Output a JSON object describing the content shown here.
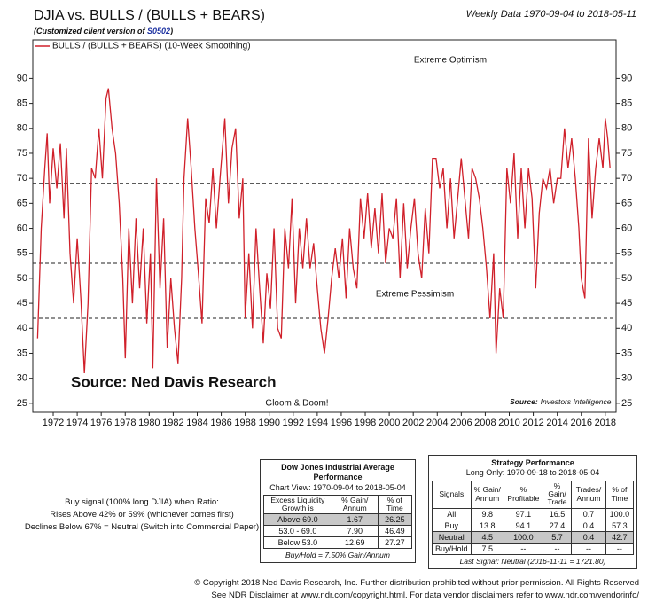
{
  "header": {
    "title": "DJIA vs. BULLS / (BULLS + BEARS)",
    "subtitle": [
      "(Customized client version of ",
      "S0502",
      ")"
    ],
    "date_range": "Weekly Data 1970-09-04 to 2018-05-11"
  },
  "chart_data": {
    "type": "line",
    "x": [
      1970.7,
      1971.0,
      1971.3,
      1971.5,
      1971.7,
      1972.0,
      1972.3,
      1972.6,
      1972.9,
      1973.1,
      1973.4,
      1973.7,
      1974.0,
      1974.3,
      1974.6,
      1974.9,
      1975.2,
      1975.5,
      1975.8,
      1976.1,
      1976.4,
      1976.6,
      1976.9,
      1977.2,
      1977.5,
      1977.8,
      1978.0,
      1978.3,
      1978.6,
      1978.9,
      1979.2,
      1979.5,
      1979.8,
      1980.1,
      1980.3,
      1980.6,
      1980.9,
      1981.2,
      1981.5,
      1981.8,
      1982.1,
      1982.4,
      1982.7,
      1982.9,
      1983.2,
      1983.5,
      1983.8,
      1984.1,
      1984.4,
      1984.7,
      1985.0,
      1985.3,
      1985.6,
      1985.9,
      1986.3,
      1986.6,
      1986.9,
      1987.2,
      1987.5,
      1987.8,
      1988.0,
      1988.3,
      1988.6,
      1988.9,
      1989.2,
      1989.5,
      1989.8,
      1990.1,
      1990.4,
      1990.7,
      1991.0,
      1991.3,
      1991.6,
      1991.9,
      1992.2,
      1992.5,
      1992.8,
      1993.1,
      1993.4,
      1993.7,
      1994.0,
      1994.3,
      1994.6,
      1994.9,
      1995.2,
      1995.5,
      1995.8,
      1996.1,
      1996.4,
      1996.7,
      1997.0,
      1997.3,
      1997.6,
      1997.9,
      1998.2,
      1998.5,
      1998.8,
      1999.1,
      1999.4,
      1999.7,
      2000.0,
      2000.3,
      2000.6,
      2000.9,
      2001.2,
      2001.5,
      2001.8,
      2002.1,
      2002.4,
      2002.7,
      2003.0,
      2003.3,
      2003.6,
      2003.9,
      2004.2,
      2004.5,
      2004.8,
      2005.1,
      2005.4,
      2005.7,
      2006.0,
      2006.3,
      2006.6,
      2006.9,
      2007.2,
      2007.5,
      2007.8,
      2008.1,
      2008.4,
      2008.7,
      2008.9,
      2009.2,
      2009.5,
      2009.8,
      2010.1,
      2010.4,
      2010.7,
      2011.0,
      2011.3,
      2011.6,
      2011.9,
      2012.2,
      2012.5,
      2012.8,
      2013.1,
      2013.4,
      2013.7,
      2014.0,
      2014.3,
      2014.6,
      2014.9,
      2015.2,
      2015.5,
      2015.8,
      2016.0,
      2016.3,
      2016.6,
      2016.9,
      2017.2,
      2017.5,
      2017.8,
      2018.0,
      2018.2,
      2018.4
    ],
    "series": [
      {
        "name": "BULLS / (BULLS + BEARS) (10-Week Smoothing)",
        "color": "#d0202a",
        "values": [
          38,
          60,
          72,
          79,
          65,
          76,
          68,
          77,
          62,
          76,
          55,
          45,
          58,
          46,
          31,
          45,
          72,
          70,
          80,
          70,
          86,
          88,
          80,
          75,
          65,
          50,
          34,
          60,
          45,
          62,
          48,
          60,
          41,
          55,
          32,
          70,
          48,
          62,
          36,
          50,
          40,
          33,
          50,
          70,
          82,
          72,
          60,
          51,
          41,
          66,
          61,
          72,
          60,
          70,
          82,
          65,
          76,
          80,
          62,
          70,
          42,
          55,
          40,
          60,
          48,
          37,
          51,
          44,
          60,
          40,
          38,
          60,
          52,
          66,
          45,
          60,
          52,
          62,
          52,
          57,
          48,
          40,
          35,
          42,
          50,
          56,
          50,
          58,
          46,
          60,
          52,
          48,
          66,
          58,
          67,
          56,
          64,
          55,
          67,
          53,
          60,
          58,
          66,
          50,
          65,
          52,
          60,
          66,
          55,
          50,
          64,
          55,
          74,
          74,
          68,
          72,
          60,
          70,
          58,
          66,
          74,
          66,
          58,
          72,
          70,
          66,
          60,
          52,
          42,
          55,
          35,
          48,
          42,
          72,
          65,
          75,
          58,
          72,
          60,
          72,
          66,
          48,
          63,
          70,
          68,
          72,
          65,
          70,
          70,
          80,
          72,
          78,
          70,
          60,
          50,
          46,
          78,
          62,
          72,
          78,
          72,
          82,
          78,
          72
        ]
      }
    ],
    "xlim": [
      1970.3,
      2018.9
    ],
    "ylim": [
      23.2,
      97.7
    ],
    "xticks": [
      1972,
      1974,
      1976,
      1978,
      1980,
      1982,
      1984,
      1986,
      1988,
      1990,
      1992,
      1994,
      1996,
      1998,
      2000,
      2002,
      2004,
      2006,
      2008,
      2010,
      2012,
      2014,
      2016,
      2018
    ],
    "yticks": [
      25,
      30,
      35,
      40,
      45,
      50,
      55,
      60,
      65,
      70,
      75,
      80,
      85,
      90
    ],
    "hlines": [
      69,
      53,
      42
    ],
    "annotations": [
      "Extreme Optimism",
      "Extreme Pessimism",
      "Gloom & Doom!"
    ],
    "source_left": "Source: Ned Davis Research",
    "source_right": [
      "Source:",
      "Investors Intelligence"
    ]
  },
  "note": [
    "Buy signal (100% long DJIA) when Ratio:",
    "Rises Above 42% or 59% (whichever comes first)",
    "Declines Below 67% = Neutral (Switch into Commercial Paper)"
  ],
  "tables": [
    {
      "title": "Dow Jones Industrial Average Performance",
      "subtitle": "Chart View: 1970-09-04 to 2018-05-04",
      "headers": [
        "Excess Liquidity Growth is",
        "% Gain/ Annum",
        "% of Time"
      ],
      "rows": [
        [
          "Above 69.0",
          "1.67",
          "26.25"
        ],
        [
          "53.0 - 69.0",
          "7.90",
          "46.49"
        ],
        [
          "Below 53.0",
          "12.69",
          "27.27"
        ]
      ],
      "footer": "Buy/Hold = 7.50% Gain/Annum"
    },
    {
      "title": "Strategy Performance",
      "subtitle": "Long Only: 1970-09-18 to 2018-05-04",
      "headers": [
        "Signals",
        "% Gain/ Annum",
        "% Profitable",
        "% Gain/ Trade",
        "Trades/ Annum",
        "% of Time"
      ],
      "rows": [
        [
          "All",
          "9.8",
          "97.1",
          "16.5",
          "0.7",
          "100.0"
        ],
        [
          "Buy",
          "13.8",
          "94.1",
          "27.4",
          "0.4",
          "57.3"
        ],
        [
          "Neutral",
          "4.5",
          "100.0",
          "5.7",
          "0.4",
          "42.7"
        ],
        [
          "Buy/Hold",
          "7.5",
          "--",
          "--",
          "--",
          "--"
        ]
      ],
      "footer": "Last Signal: Neutral (2016-11-11 = 1721.80)"
    }
  ],
  "footer": [
    "© Copyright 2018 Ned Davis Research, Inc. Further distribution prohibited without prior permission. All Rights Reserved",
    "See NDR Disclaimer at www.ndr.com/copyright.html. For data vendor disclaimers refer to www.ndr.com/vendorinfo/"
  ]
}
